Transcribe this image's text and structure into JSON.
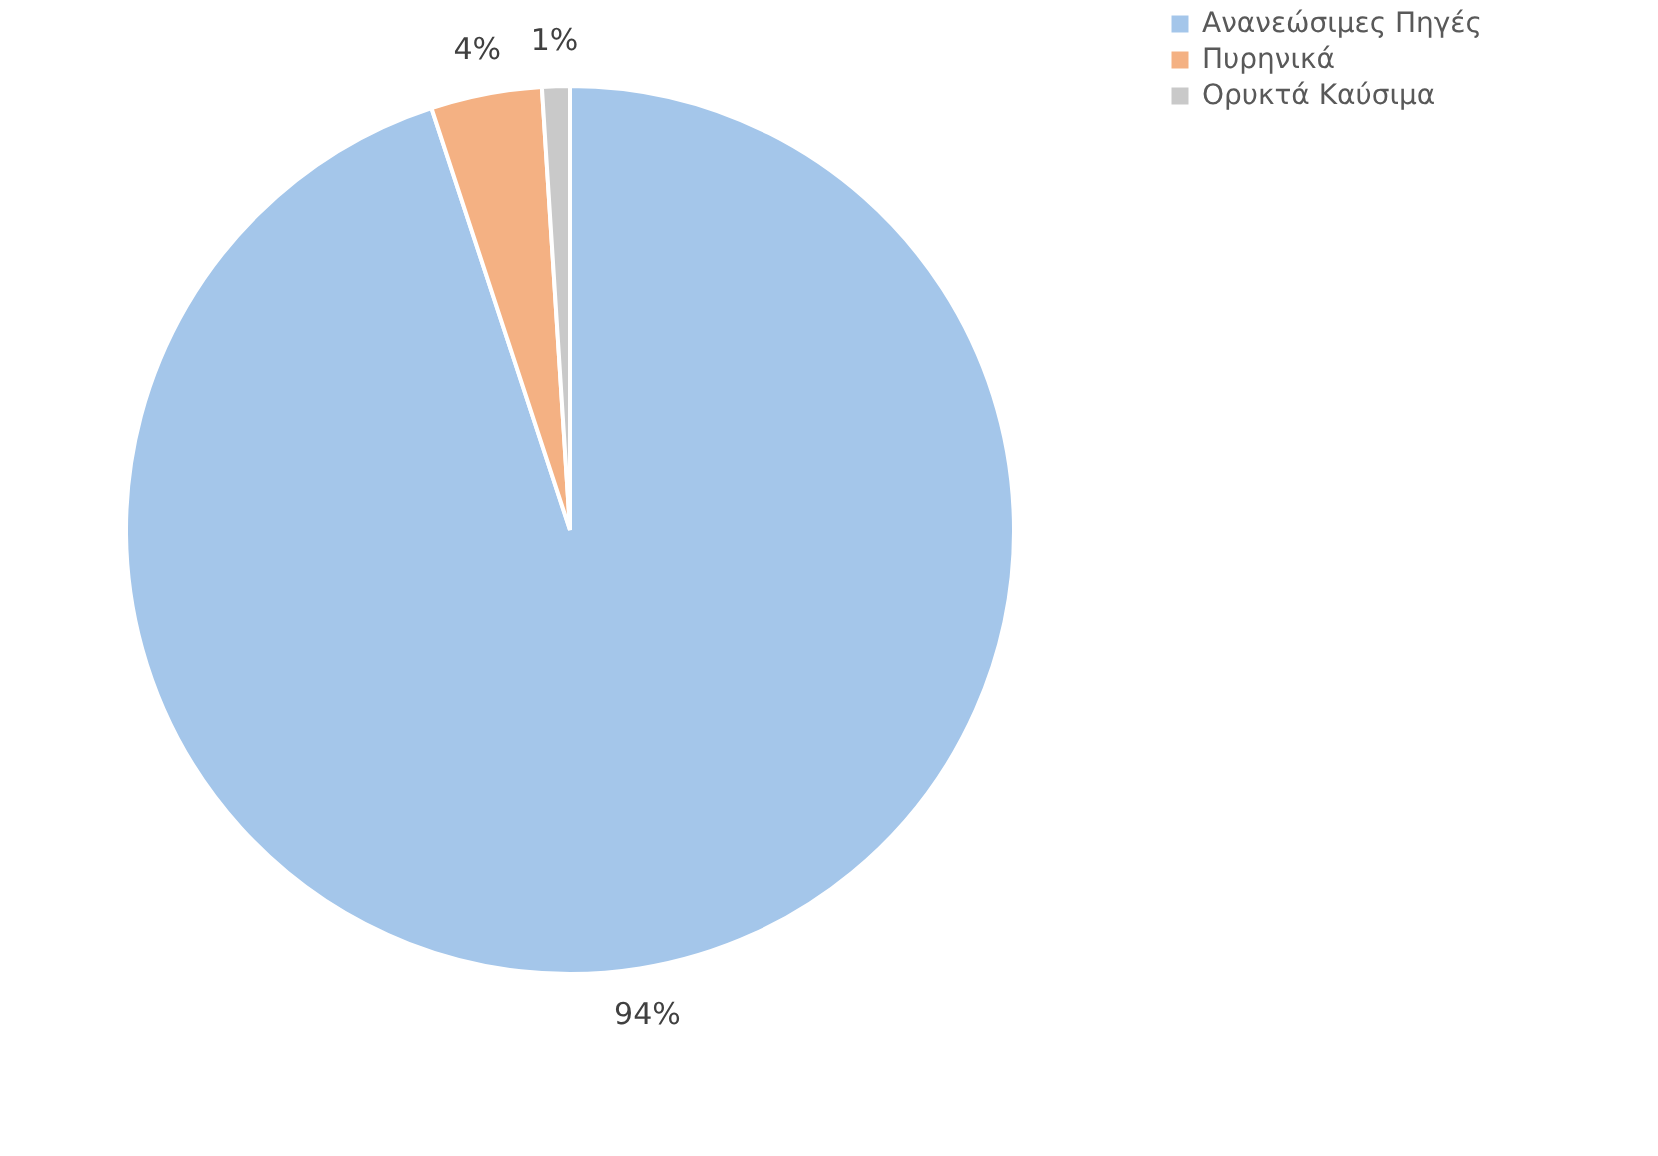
{
  "chart_data": {
    "type": "pie",
    "categories": [
      "Ανανεώσιμες  Πηγές",
      "Πυρηνικά",
      "Ορυκτά Καύσιμα"
    ],
    "values": [
      94,
      4,
      1
    ],
    "colors": [
      "#a4c6ea",
      "#f4b183",
      "#c9c9c9"
    ],
    "value_labels": [
      "94%",
      "4%",
      "1%"
    ],
    "legend": "right"
  }
}
